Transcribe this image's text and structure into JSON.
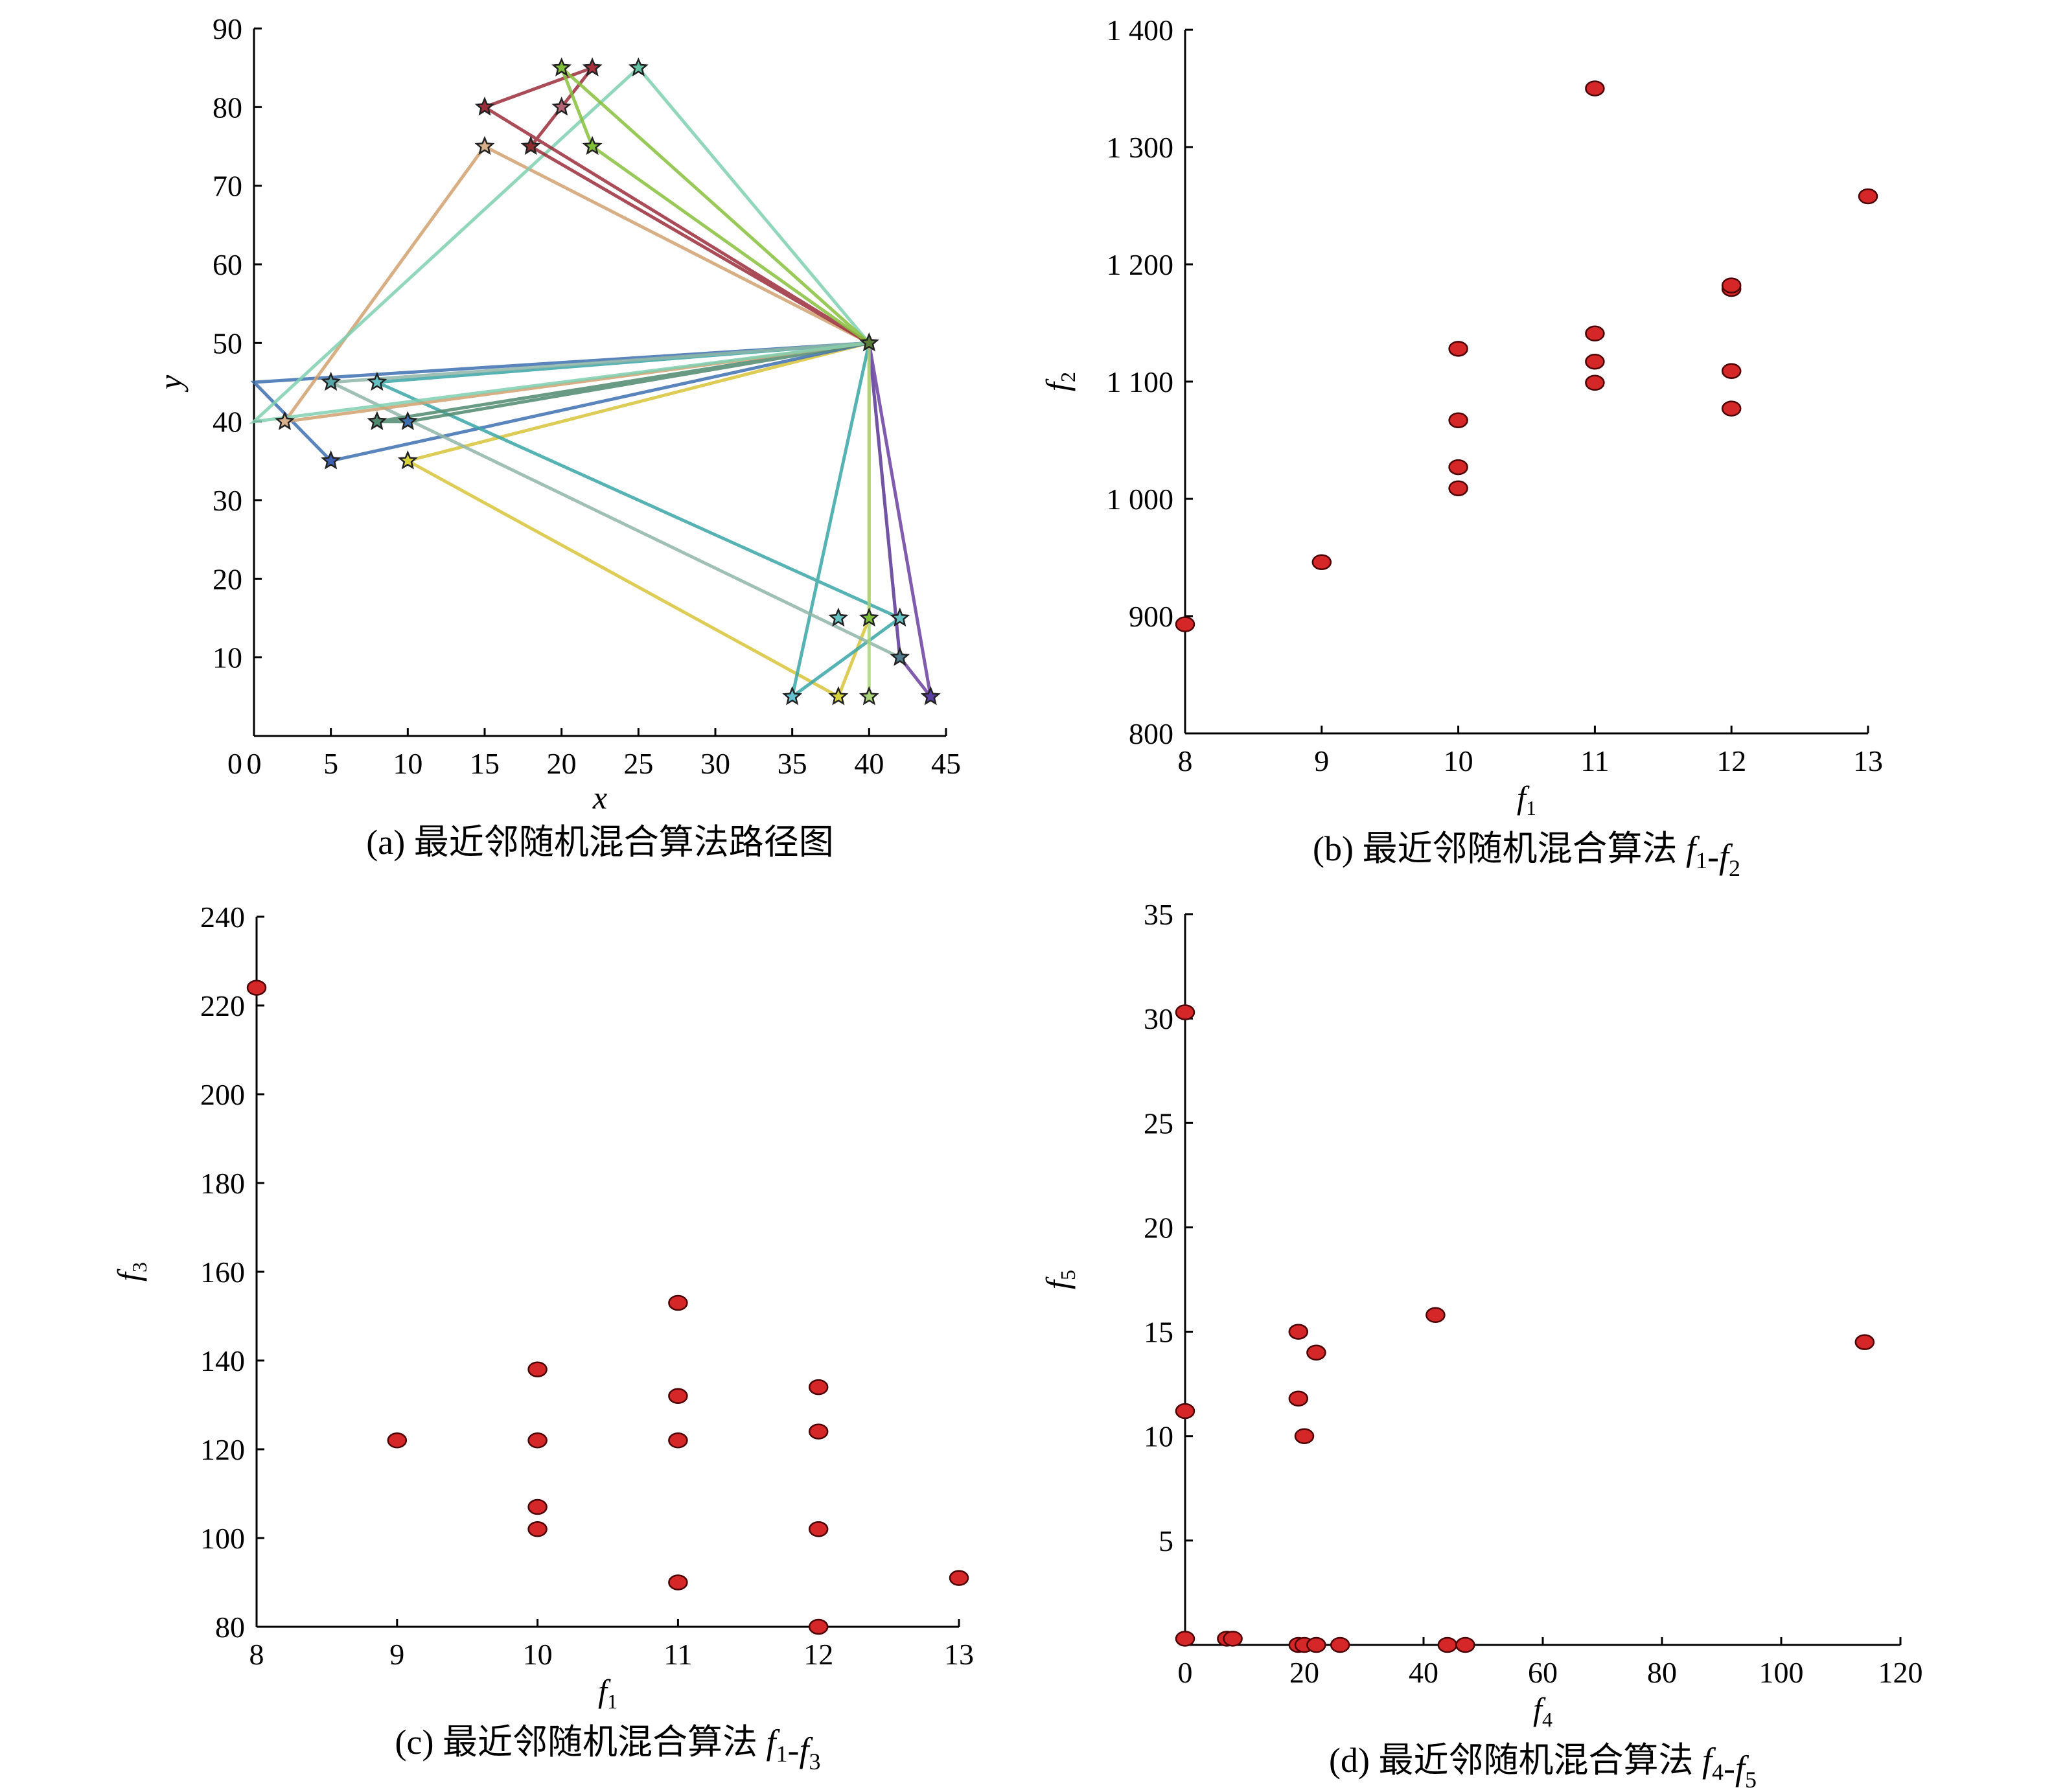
{
  "chart_data": [
    {
      "id": "a",
      "type": "line",
      "caption": "(a) 最近邻随机混合算法路径图",
      "xlabel": "x",
      "ylabel": "y",
      "xlim": [
        0,
        45
      ],
      "ylim": [
        0,
        90
      ],
      "xticks": [
        0,
        5,
        10,
        15,
        20,
        25,
        30,
        35,
        40,
        45
      ],
      "yticks": [
        10,
        20,
        30,
        40,
        50,
        60,
        70,
        80,
        90
      ],
      "yzero_label": "0",
      "depot": [
        40,
        50
      ],
      "routes": [
        {
          "color": "#d7c43a",
          "points": [
            [
              40,
              50
            ],
            [
              10,
              35
            ],
            [
              38,
              5
            ],
            [
              40,
              15
            ],
            [
              40,
              50
            ]
          ]
        },
        {
          "color": "#3d6fb0",
          "points": [
            [
              40,
              50
            ],
            [
              0,
              45
            ],
            [
              5,
              35
            ],
            [
              40,
              50
            ]
          ]
        },
        {
          "color": "#3aa6a6",
          "points": [
            [
              40,
              50
            ],
            [
              8,
              45
            ],
            [
              42,
              15
            ],
            [
              35,
              5
            ],
            [
              40,
              50
            ]
          ]
        },
        {
          "color": "#8fb5a8",
          "points": [
            [
              40,
              50
            ],
            [
              5,
              45
            ],
            [
              42,
              10
            ],
            [
              40,
              50
            ]
          ]
        },
        {
          "color": "#6b3fa0",
          "points": [
            [
              40,
              50
            ],
            [
              44,
              5
            ],
            [
              42,
              10
            ],
            [
              40,
              50
            ]
          ]
        },
        {
          "color": "#a9d47a",
          "points": [
            [
              40,
              50
            ],
            [
              40,
              5
            ],
            [
              40,
              50
            ]
          ]
        },
        {
          "color": "#4f8a6f",
          "points": [
            [
              40,
              50
            ],
            [
              8,
              40
            ],
            [
              10,
              40
            ],
            [
              40,
              50
            ]
          ]
        },
        {
          "color": "#d1a070",
          "points": [
            [
              40,
              50
            ],
            [
              15,
              75
            ],
            [
              2,
              40
            ],
            [
              40,
              50
            ]
          ]
        },
        {
          "color": "#7fcfb0",
          "points": [
            [
              40,
              50
            ],
            [
              25,
              85
            ],
            [
              0,
              40
            ],
            [
              40,
              50
            ]
          ]
        },
        {
          "color": "#9b2d3a",
          "points": [
            [
              40,
              50
            ],
            [
              15,
              80
            ],
            [
              22,
              85
            ],
            [
              18,
              75
            ],
            [
              40,
              50
            ]
          ]
        },
        {
          "color": "#86bf3c",
          "points": [
            [
              40,
              50
            ],
            [
              20,
              85
            ],
            [
              22,
              75
            ],
            [
              40,
              50
            ]
          ]
        }
      ],
      "stars": [
        {
          "xy": [
            40,
            50
          ],
          "color": "#5a7d3a"
        },
        {
          "xy": [
            20,
            85
          ],
          "color": "#7fbf3c"
        },
        {
          "xy": [
            22,
            85
          ],
          "color": "#a8323c"
        },
        {
          "xy": [
            25,
            85
          ],
          "color": "#66c2a5"
        },
        {
          "xy": [
            15,
            80
          ],
          "color": "#9b2d3a"
        },
        {
          "xy": [
            20,
            80
          ],
          "color": "#b56576"
        },
        {
          "xy": [
            15,
            75
          ],
          "color": "#d8b08c"
        },
        {
          "xy": [
            18,
            75
          ],
          "color": "#8c2d2d"
        },
        {
          "xy": [
            22,
            75
          ],
          "color": "#7fbf3c"
        },
        {
          "xy": [
            5,
            45
          ],
          "color": "#5aa6a6"
        },
        {
          "xy": [
            8,
            45
          ],
          "color": "#66c2c2"
        },
        {
          "xy": [
            2,
            40
          ],
          "color": "#d8b08c"
        },
        {
          "xy": [
            8,
            40
          ],
          "color": "#4f8a6f"
        },
        {
          "xy": [
            10,
            40
          ],
          "color": "#3d6fb0"
        },
        {
          "xy": [
            5,
            35
          ],
          "color": "#3d5fb0"
        },
        {
          "xy": [
            10,
            35
          ],
          "color": "#d7d43a"
        },
        {
          "xy": [
            38,
            15
          ],
          "color": "#66c2c2"
        },
        {
          "xy": [
            40,
            15
          ],
          "color": "#7fbf3c"
        },
        {
          "xy": [
            42,
            15
          ],
          "color": "#66c2c2"
        },
        {
          "xy": [
            42,
            10
          ],
          "color": "#4f7a8a"
        },
        {
          "xy": [
            35,
            5
          ],
          "color": "#66c2d2"
        },
        {
          "xy": [
            38,
            5
          ],
          "color": "#d7d43a"
        },
        {
          "xy": [
            40,
            5
          ],
          "color": "#a9d47a"
        },
        {
          "xy": [
            44,
            5
          ],
          "color": "#5a3fa0"
        }
      ]
    },
    {
      "id": "b",
      "type": "scatter",
      "caption_prefix": "(b) 最近邻随机混合算法",
      "caption_terms": [
        [
          "f",
          "1"
        ],
        [
          "f",
          "2"
        ]
      ],
      "xlabel": "f",
      "xlabel_sub": "1",
      "ylabel": "f",
      "ylabel_sub": "2",
      "xlim": [
        8,
        13
      ],
      "ylim": [
        800,
        1400
      ],
      "xticks": [
        8,
        9,
        10,
        11,
        12,
        13
      ],
      "xtick_labels": [
        "8",
        "9",
        "10",
        "11",
        "12",
        "13"
      ],
      "yticks": [
        800,
        900,
        1000,
        1100,
        1200,
        1300,
        1400
      ],
      "ytick_labels": [
        "800",
        "900",
        "1 000",
        "1 100",
        "1 200",
        "1 300",
        "1 400"
      ],
      "points": [
        [
          8,
          893
        ],
        [
          9,
          946
        ],
        [
          10,
          1009
        ],
        [
          10,
          1027
        ],
        [
          10,
          1067
        ],
        [
          10,
          1128
        ],
        [
          11,
          1099
        ],
        [
          11,
          1117
        ],
        [
          11,
          1141
        ],
        [
          11,
          1350
        ],
        [
          12,
          1077
        ],
        [
          12,
          1109
        ],
        [
          12,
          1179
        ],
        [
          12,
          1182
        ],
        [
          13,
          1258
        ]
      ]
    },
    {
      "id": "c",
      "type": "scatter",
      "caption_prefix": "(c) 最近邻随机混合算法",
      "caption_terms": [
        [
          "f",
          "1"
        ],
        [
          "f",
          "3"
        ]
      ],
      "xlabel": "f",
      "xlabel_sub": "1",
      "ylabel": "f",
      "ylabel_sub": "3",
      "xlim": [
        8,
        13
      ],
      "ylim": [
        80,
        240
      ],
      "xticks": [
        8,
        9,
        10,
        11,
        12,
        13
      ],
      "xtick_labels": [
        "8",
        "9",
        "10",
        "11",
        "12",
        "13"
      ],
      "yticks": [
        80,
        100,
        120,
        140,
        160,
        180,
        200,
        220,
        240
      ],
      "ytick_labels": [
        "80",
        "100",
        "120",
        "140",
        "160",
        "180",
        "200",
        "220",
        "240"
      ],
      "points": [
        [
          8,
          224
        ],
        [
          9,
          122
        ],
        [
          10,
          138
        ],
        [
          10,
          122
        ],
        [
          10,
          107
        ],
        [
          10,
          102
        ],
        [
          11,
          153
        ],
        [
          11,
          132
        ],
        [
          11,
          122
        ],
        [
          11,
          90
        ],
        [
          12,
          134
        ],
        [
          12,
          124
        ],
        [
          12,
          102
        ],
        [
          12,
          80
        ],
        [
          13,
          91
        ]
      ]
    },
    {
      "id": "d",
      "type": "scatter",
      "caption_prefix": "(d) 最近邻随机混合算法",
      "caption_terms": [
        [
          "f",
          "4"
        ],
        [
          "f",
          "5"
        ]
      ],
      "xlabel": "f",
      "xlabel_sub": "4",
      "ylabel": "f",
      "ylabel_sub": "5",
      "xlim": [
        0,
        120
      ],
      "ylim": [
        0,
        35
      ],
      "xticks": [
        0,
        20,
        40,
        60,
        80,
        100,
        120
      ],
      "xtick_labels": [
        "0",
        "20",
        "40",
        "60",
        "80",
        "100",
        "120"
      ],
      "yticks": [
        5,
        10,
        15,
        20,
        25,
        30,
        35
      ],
      "ytick_labels": [
        "5",
        "10",
        "15",
        "20",
        "25",
        "30",
        "35"
      ],
      "points": [
        [
          0,
          30.3
        ],
        [
          0,
          11.2
        ],
        [
          0,
          0.3
        ],
        [
          7,
          0.3
        ],
        [
          8,
          0.3
        ],
        [
          19,
          15
        ],
        [
          19,
          11.8
        ],
        [
          20,
          10
        ],
        [
          22,
          14
        ],
        [
          19,
          0
        ],
        [
          20,
          0
        ],
        [
          22,
          0
        ],
        [
          26,
          0
        ],
        [
          42,
          15.8
        ],
        [
          44,
          0
        ],
        [
          47,
          0
        ],
        [
          114,
          14.5
        ]
      ]
    }
  ]
}
